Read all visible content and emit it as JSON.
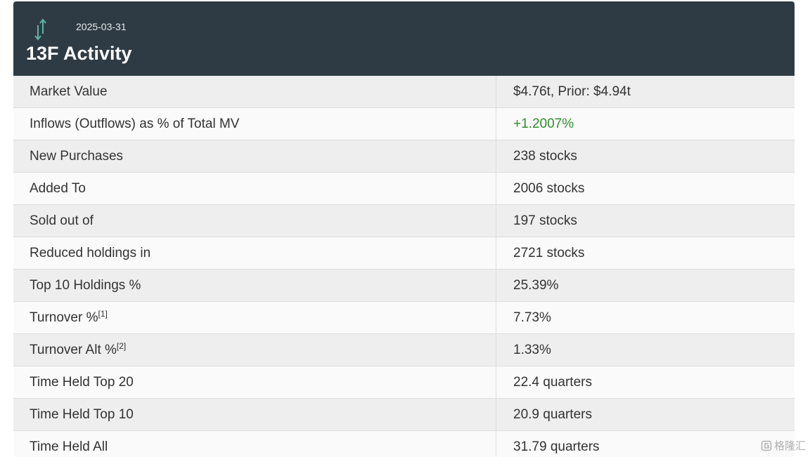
{
  "header": {
    "date": "2025-03-31",
    "title": "13F Activity",
    "icon": "up-down-arrows-icon"
  },
  "colors": {
    "header_bg": "#2f3b44",
    "icon_accent": "#5fb3a3",
    "positive": "#2f8f2f"
  },
  "rows": [
    {
      "label": "Market Value",
      "value": "$4.76t, Prior: $4.94t"
    },
    {
      "label": "Inflows (Outflows) as % of Total MV",
      "value": "+1.2007%",
      "positive": true
    },
    {
      "label": "New Purchases",
      "value": "238 stocks"
    },
    {
      "label": "Added To",
      "value": "2006 stocks"
    },
    {
      "label": "Sold out of",
      "value": "197 stocks"
    },
    {
      "label": "Reduced holdings in",
      "value": "2721 stocks"
    },
    {
      "label": "Top 10 Holdings %",
      "value": "25.39%"
    },
    {
      "label": "Turnover %",
      "footnote": "[1]",
      "value": "7.73%"
    },
    {
      "label": "Turnover Alt %",
      "footnote": "[2]",
      "value": "1.33%"
    },
    {
      "label": "Time Held Top 20",
      "value": "22.4 quarters"
    },
    {
      "label": "Time Held Top 10",
      "value": "20.9 quarters"
    },
    {
      "label": "Time Held All",
      "value": "31.79 quarters"
    }
  ],
  "watermark": {
    "text": "格隆汇",
    "icon": "watermark-logo-icon"
  }
}
